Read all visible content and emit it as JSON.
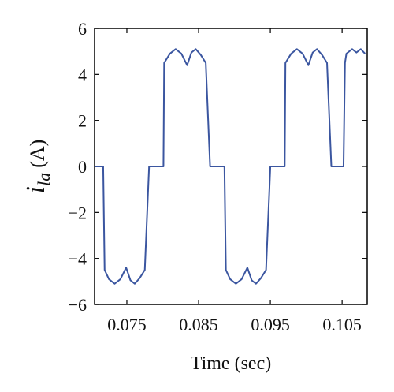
{
  "chart_data": {
    "type": "line",
    "xlabel": "Time (sec)",
    "ylabel": {
      "symbol": "i",
      "subscript": "la",
      "unit": "(A)"
    },
    "xlim": [
      0.0705,
      0.1085
    ],
    "ylim": [
      -6,
      6
    ],
    "xticks": [
      0.075,
      0.085,
      0.095,
      0.105
    ],
    "xtick_labels": [
      "0.075",
      "0.085",
      "0.095",
      "0.105"
    ],
    "yticks": [
      -6,
      -4,
      -2,
      0,
      2,
      4,
      6
    ],
    "ytick_labels": [
      "−6",
      "−4",
      "−2",
      "0",
      "2",
      "4",
      "6"
    ],
    "grid": false,
    "series": [
      {
        "color": "#3b56a0",
        "x": [
          0.0705,
          0.0717,
          0.0719,
          0.0725,
          0.0733,
          0.0741,
          0.0749,
          0.0755,
          0.0761,
          0.0768,
          0.0775,
          0.0781,
          0.0784,
          0.0786,
          0.0801,
          0.0802,
          0.081,
          0.0818,
          0.0826,
          0.0834,
          0.084,
          0.0846,
          0.0853,
          0.086,
          0.0866,
          0.0868,
          0.087,
          0.0884,
          0.0886,
          0.0888,
          0.0894,
          0.0902,
          0.091,
          0.0918,
          0.0924,
          0.093,
          0.0937,
          0.0944,
          0.095,
          0.0952,
          0.0955,
          0.097,
          0.0971,
          0.0979,
          0.0987,
          0.0995,
          0.1003,
          0.1009,
          0.1015,
          0.1022,
          0.1029,
          0.1035,
          0.1037,
          0.1039,
          0.1052,
          0.1054,
          0.1056,
          0.1064,
          0.107,
          0.1076,
          0.1082
        ],
        "y": [
          0,
          0,
          -4.5,
          -4.9,
          -5.1,
          -4.9,
          -4.4,
          -4.95,
          -5.1,
          -4.85,
          -4.5,
          0,
          0,
          0,
          0,
          4.5,
          4.9,
          5.1,
          4.9,
          4.4,
          4.95,
          5.1,
          4.85,
          4.5,
          0,
          0,
          0,
          0,
          0,
          -4.5,
          -4.9,
          -5.1,
          -4.9,
          -4.4,
          -4.95,
          -5.1,
          -4.85,
          -4.5,
          0,
          0,
          0,
          0,
          4.5,
          4.9,
          5.1,
          4.9,
          4.4,
          4.95,
          5.1,
          4.85,
          4.5,
          0,
          0,
          0,
          0,
          4.5,
          4.9,
          5.1,
          4.95,
          5.1,
          4.9
        ]
      }
    ]
  }
}
